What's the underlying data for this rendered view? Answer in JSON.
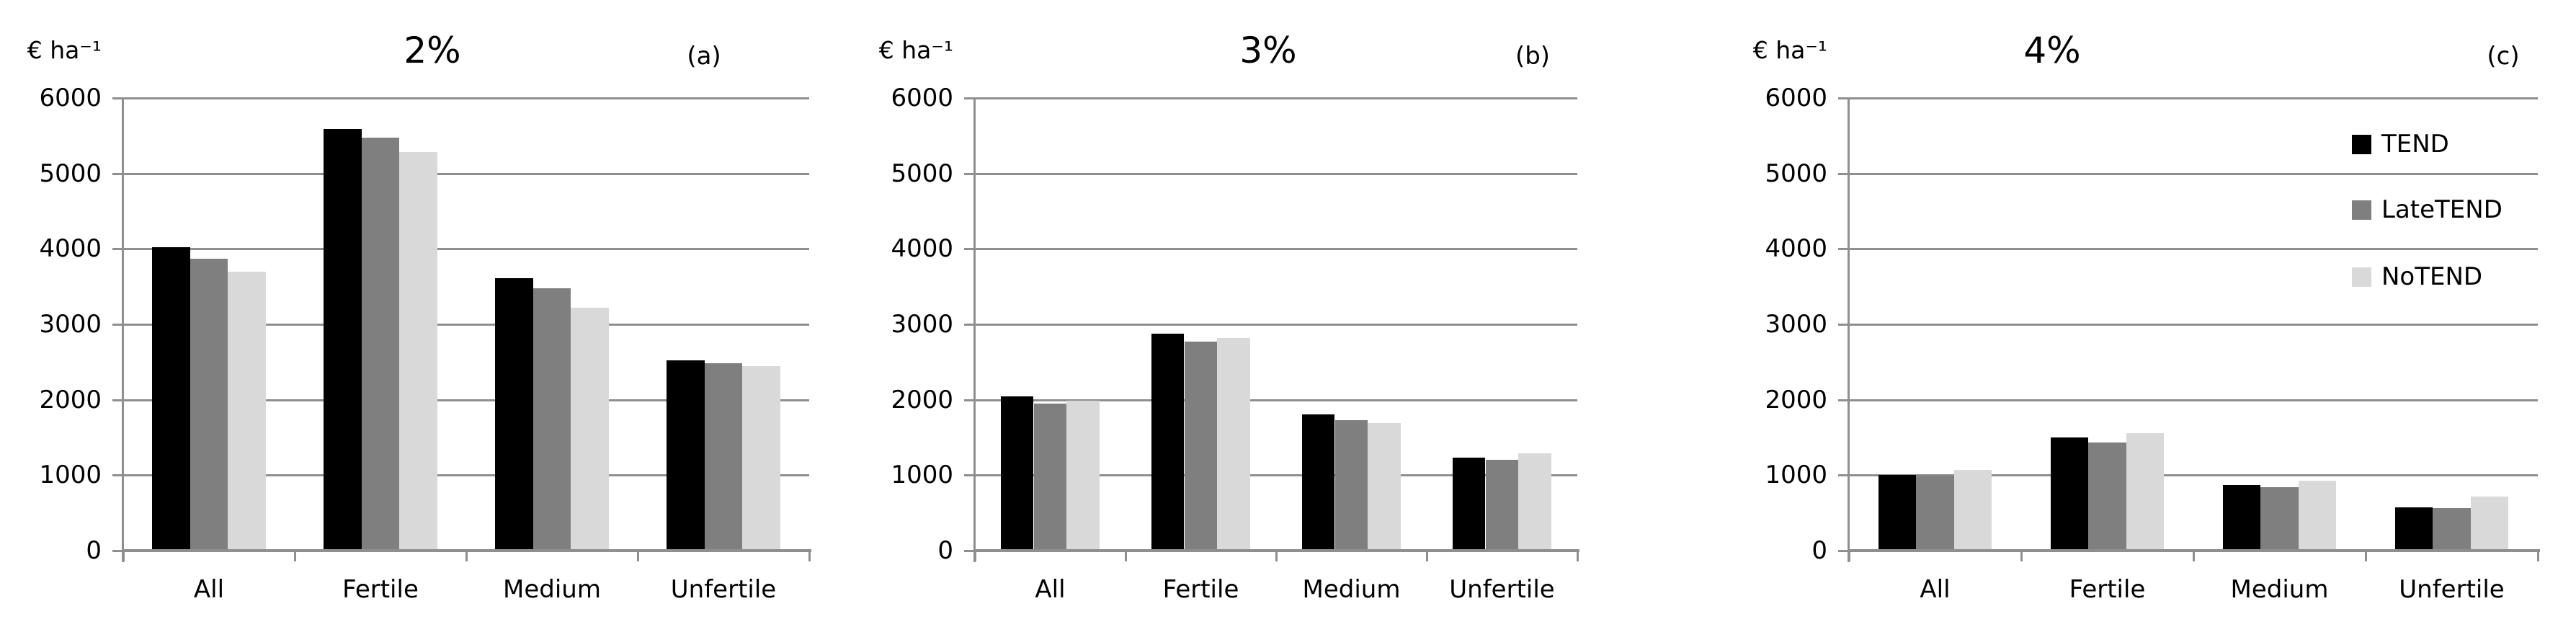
{
  "figure": {
    "background": "#ffffff",
    "line_color": "#8f8f8f",
    "text_color": "#000000",
    "y_tick_labels": [
      "0",
      "1000",
      "2000",
      "3000",
      "4000",
      "5000",
      "6000"
    ],
    "legend": {
      "position": "inside-right-panel-c",
      "items": [
        {
          "label": "TEND",
          "color": "#000000"
        },
        {
          "label": "LateTEND",
          "color": "#7f7f7f"
        },
        {
          "label": "NoTEND",
          "color": "#d9d9d9"
        }
      ]
    }
  },
  "chart_data": [
    {
      "type": "bar",
      "panel": "a",
      "title": "2%",
      "corner_label": "(a)",
      "unit_label": "€ ha⁻¹",
      "ylabel": "€ ha⁻¹",
      "xlabel": "",
      "ylim": [
        0,
        6000
      ],
      "ytick_step": 1000,
      "grid": true,
      "legend": false,
      "categories": [
        "All",
        "Fertile",
        "Medium",
        "Unfertile"
      ],
      "series": [
        {
          "name": "TEND",
          "color": "#000000",
          "values": [
            4020,
            5590,
            3610,
            2520
          ]
        },
        {
          "name": "LateTEND",
          "color": "#7f7f7f",
          "values": [
            3870,
            5470,
            3480,
            2480
          ]
        },
        {
          "name": "NoTEND",
          "color": "#d9d9d9",
          "values": [
            3700,
            5280,
            3220,
            2450
          ]
        }
      ]
    },
    {
      "type": "bar",
      "panel": "b",
      "title": "3%",
      "corner_label": "(b)",
      "unit_label": "€ ha⁻¹",
      "ylabel": "€ ha⁻¹",
      "xlabel": "",
      "ylim": [
        0,
        6000
      ],
      "ytick_step": 1000,
      "grid": true,
      "legend": false,
      "categories": [
        "All",
        "Fertile",
        "Medium",
        "Unfertile"
      ],
      "series": [
        {
          "name": "TEND",
          "color": "#000000",
          "values": [
            2040,
            2880,
            1810,
            1230
          ]
        },
        {
          "name": "LateTEND",
          "color": "#7f7f7f",
          "values": [
            1950,
            2770,
            1730,
            1200
          ]
        },
        {
          "name": "NoTEND",
          "color": "#d9d9d9",
          "values": [
            1990,
            2820,
            1690,
            1290
          ]
        }
      ]
    },
    {
      "type": "bar",
      "panel": "c",
      "title": "4%",
      "corner_label": "(c)",
      "unit_label": "€ ha⁻¹",
      "ylabel": "€ ha⁻¹",
      "xlabel": "",
      "ylim": [
        0,
        6000
      ],
      "ytick_step": 1000,
      "grid": true,
      "legend": true,
      "categories": [
        "All",
        "Fertile",
        "Medium",
        "Unfertile"
      ],
      "series": [
        {
          "name": "TEND",
          "color": "#000000",
          "values": [
            1000,
            1500,
            870,
            570
          ]
        },
        {
          "name": "LateTEND",
          "color": "#7f7f7f",
          "values": [
            990,
            1430,
            845,
            560
          ]
        },
        {
          "name": "NoTEND",
          "color": "#d9d9d9",
          "values": [
            1070,
            1560,
            925,
            720
          ]
        }
      ]
    }
  ]
}
